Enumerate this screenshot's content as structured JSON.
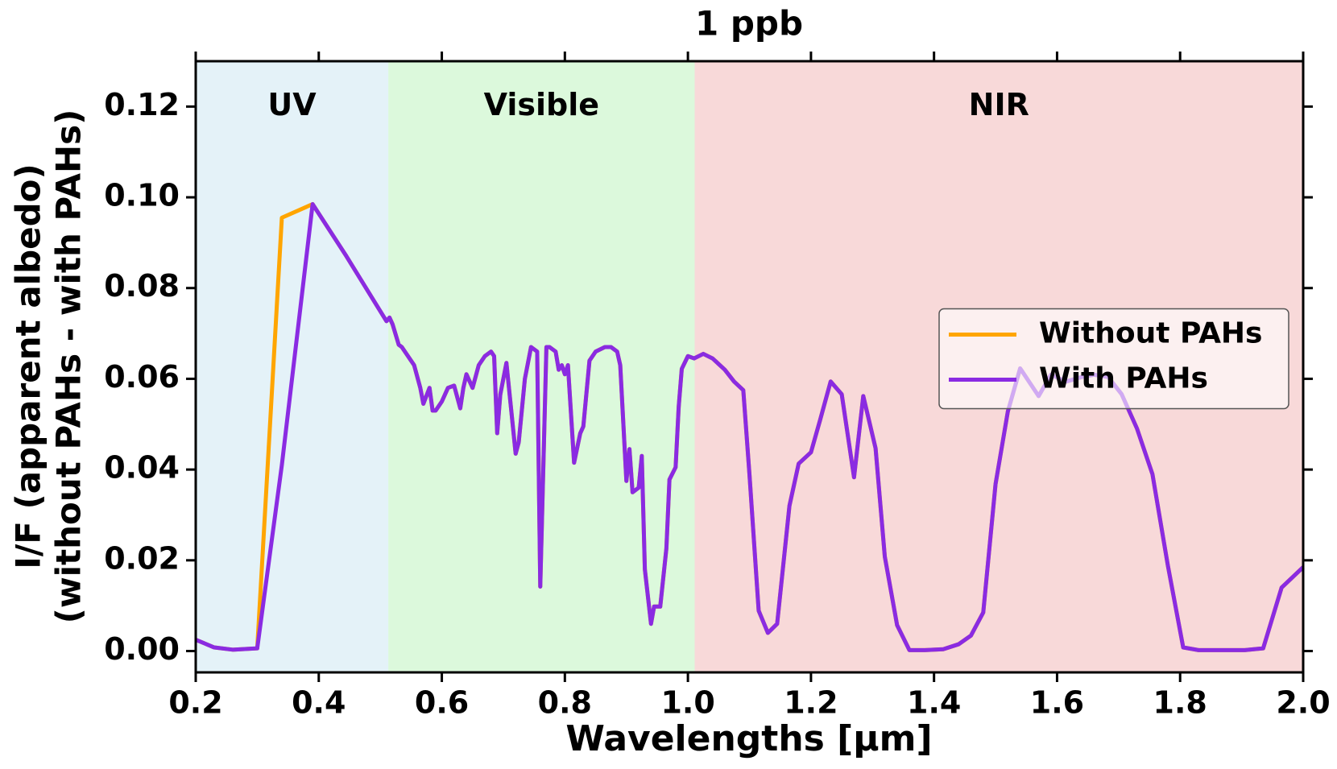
{
  "chart_data": {
    "type": "line",
    "title": "1 ppb",
    "xlabel": "Wavelengths [µm]",
    "ylabel": [
      "I/F (apparent albedo)",
      "(without PAHs - with PAHs)"
    ],
    "regions": [
      {
        "name": "UV",
        "range": [
          0.2,
          0.513
        ],
        "color": "#e4f2f8"
      },
      {
        "name": "Visible",
        "range": [
          0.513,
          1.011
        ],
        "color": "#dcf9dc"
      },
      {
        "name": "NIR",
        "range": [
          1.011,
          2.0
        ],
        "color": "#f8d9d9"
      }
    ],
    "x": [
      0.2,
      0.23,
      0.26,
      0.3,
      0.34,
      0.39,
      0.445,
      0.51,
      0.515,
      0.52,
      0.53,
      0.535,
      0.545,
      0.555,
      0.565,
      0.57,
      0.58,
      0.585,
      0.59,
      0.6,
      0.61,
      0.62,
      0.63,
      0.635,
      0.64,
      0.65,
      0.655,
      0.66,
      0.67,
      0.68,
      0.685,
      0.69,
      0.695,
      0.705,
      0.72,
      0.725,
      0.735,
      0.745,
      0.755,
      0.76,
      0.77,
      0.775,
      0.785,
      0.79,
      0.795,
      0.8,
      0.805,
      0.815,
      0.825,
      0.83,
      0.84,
      0.85,
      0.865,
      0.875,
      0.885,
      0.89,
      0.9,
      0.905,
      0.91,
      0.92,
      0.925,
      0.93,
      0.94,
      0.945,
      0.955,
      0.965,
      0.97,
      0.98,
      0.985,
      0.99,
      1.0,
      1.01,
      1.025,
      1.04,
      1.06,
      1.075,
      1.09,
      1.1,
      1.115,
      1.13,
      1.145,
      1.165,
      1.18,
      1.2,
      1.215,
      1.232,
      1.25,
      1.27,
      1.285,
      1.305,
      1.32,
      1.34,
      1.36,
      1.385,
      1.415,
      1.44,
      1.46,
      1.48,
      1.5,
      1.52,
      1.54,
      1.57,
      1.59,
      1.615,
      1.64,
      1.66,
      1.683,
      1.705,
      1.73,
      1.755,
      1.78,
      1.805,
      1.83,
      1.905,
      1.935,
      1.965,
      2.0
    ],
    "series": [
      {
        "name": "Without PAHs",
        "color": "#ffa500",
        "values": [
          0.0025,
          0.0008,
          0.0003,
          0.0006,
          0.0955,
          0.0985,
          0.087,
          0.0727,
          0.0735,
          0.072,
          0.0675,
          0.067,
          0.065,
          0.063,
          0.058,
          0.0545,
          0.058,
          0.053,
          0.053,
          0.055,
          0.058,
          0.0585,
          0.0535,
          0.058,
          0.061,
          0.058,
          0.0605,
          0.063,
          0.065,
          0.066,
          0.065,
          0.048,
          0.0565,
          0.0635,
          0.0435,
          0.046,
          0.06,
          0.067,
          0.066,
          0.0142,
          0.067,
          0.067,
          0.066,
          0.062,
          0.063,
          0.061,
          0.063,
          0.0415,
          0.048,
          0.0495,
          0.064,
          0.066,
          0.067,
          0.067,
          0.066,
          0.063,
          0.0375,
          0.0445,
          0.035,
          0.036,
          0.043,
          0.018,
          0.006,
          0.0098,
          0.0098,
          0.0226,
          0.0378,
          0.0405,
          0.0538,
          0.0622,
          0.065,
          0.0645,
          0.0655,
          0.0645,
          0.062,
          0.0594,
          0.0575,
          0.039,
          0.0089,
          0.004,
          0.006,
          0.032,
          0.0413,
          0.0438,
          0.051,
          0.0594,
          0.0566,
          0.0383,
          0.0562,
          0.0447,
          0.0208,
          0.0057,
          0.0002,
          0.0002,
          0.0004,
          0.0015,
          0.0034,
          0.0085,
          0.0368,
          0.0528,
          0.0623,
          0.0562,
          0.0609,
          0.0594,
          0.0604,
          0.0609,
          0.0604,
          0.0566,
          0.049,
          0.039,
          0.0189,
          0.0008,
          0.0002,
          0.0002,
          0.0006,
          0.014,
          0.0185
        ]
      },
      {
        "name": "With PAHs",
        "color": "#8a2be2",
        "values": [
          0.0025,
          0.0008,
          0.0003,
          0.0006,
          0.041,
          0.0985,
          0.087,
          0.0727,
          0.0735,
          0.072,
          0.0675,
          0.067,
          0.065,
          0.063,
          0.058,
          0.0545,
          0.058,
          0.053,
          0.053,
          0.055,
          0.058,
          0.0585,
          0.0535,
          0.058,
          0.061,
          0.058,
          0.0605,
          0.063,
          0.065,
          0.066,
          0.065,
          0.048,
          0.0565,
          0.0635,
          0.0435,
          0.046,
          0.06,
          0.067,
          0.066,
          0.0142,
          0.067,
          0.067,
          0.066,
          0.062,
          0.063,
          0.061,
          0.063,
          0.0415,
          0.048,
          0.0495,
          0.064,
          0.066,
          0.067,
          0.067,
          0.066,
          0.063,
          0.0375,
          0.0445,
          0.035,
          0.036,
          0.043,
          0.018,
          0.006,
          0.0098,
          0.0098,
          0.0226,
          0.0378,
          0.0405,
          0.0538,
          0.0622,
          0.065,
          0.0645,
          0.0655,
          0.0645,
          0.062,
          0.0594,
          0.0575,
          0.039,
          0.0089,
          0.004,
          0.006,
          0.032,
          0.0413,
          0.0438,
          0.051,
          0.0594,
          0.0566,
          0.0383,
          0.0562,
          0.0447,
          0.0208,
          0.0057,
          0.0002,
          0.0002,
          0.0004,
          0.0015,
          0.0034,
          0.0085,
          0.0368,
          0.0528,
          0.0623,
          0.0562,
          0.0609,
          0.0594,
          0.0604,
          0.0609,
          0.0604,
          0.0566,
          0.049,
          0.039,
          0.0189,
          0.0008,
          0.0002,
          0.0002,
          0.0006,
          0.014,
          0.0185
        ]
      }
    ],
    "xlim": [
      0.2,
      2.0
    ],
    "xticks": [
      0.2,
      0.4,
      0.6,
      0.8,
      {
        "value": 1.0,
        "label": "1.0"
      },
      1.2,
      1.4,
      1.6,
      1.8,
      {
        "value": 2.0,
        "label": "2.0"
      }
    ],
    "ylim": [
      -0.0047,
      0.13
    ],
    "yticks": [
      {
        "value": 0,
        "label": "0.00"
      },
      0.02,
      0.04,
      0.06,
      0.08,
      {
        "value": 0.1,
        "label": "0.10"
      },
      0.12
    ],
    "legend": "center right",
    "grid": false
  }
}
